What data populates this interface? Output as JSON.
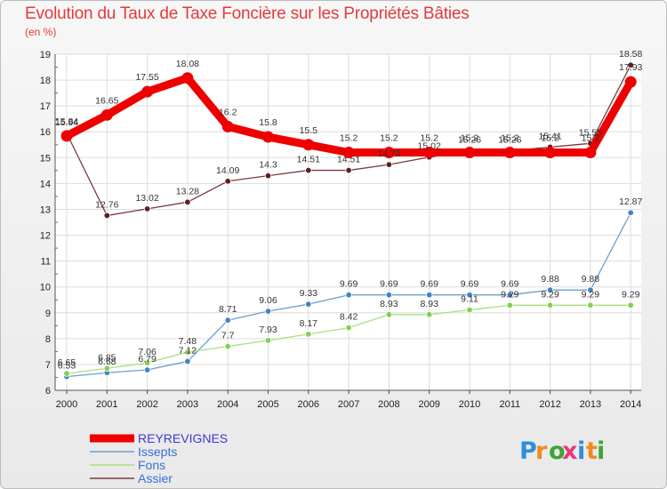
{
  "chart_data": {
    "type": "line",
    "title": "Evolution du Taux de Taxe Foncière sur les Propriétés Bâties",
    "subtitle": "(en %)",
    "xlabel": "",
    "ylabel": "",
    "x": [
      "2000",
      "2001",
      "2002",
      "2003",
      "2004",
      "2005",
      "2006",
      "2007",
      "2008",
      "2009",
      "2010",
      "2011",
      "2012",
      "2013",
      "2014"
    ],
    "ylim": [
      6,
      19
    ],
    "yticks": [
      6,
      7,
      8,
      9,
      10,
      11,
      12,
      13,
      14,
      15,
      16,
      17,
      18,
      19
    ],
    "grid": true,
    "legend_position": "bottom-left",
    "series": [
      {
        "name": "REYREVIGNES",
        "color": "#ee0000",
        "values": [
          15.84,
          16.65,
          17.55,
          18.08,
          16.2,
          15.8,
          15.5,
          15.2,
          15.2,
          15.2,
          15.2,
          15.2,
          15.2,
          15.2,
          17.93
        ],
        "labels": [
          "15.84",
          "16.65",
          "17.55",
          "18.08",
          "16.2",
          "15.8",
          "15.5",
          "15.2",
          "15.2",
          "15.2",
          "15.2",
          "15.2",
          "15.2",
          "15.2",
          "17.93"
        ]
      },
      {
        "name": "Issepts",
        "color": "#6aa0cc",
        "marker": "#3f86c6",
        "values": [
          6.53,
          6.68,
          6.79,
          7.12,
          8.71,
          9.06,
          9.33,
          9.69,
          9.69,
          9.69,
          9.69,
          9.69,
          9.88,
          9.88,
          12.87
        ],
        "labels": [
          "6.53",
          "6.68",
          "6.79",
          "7.12",
          "8.71",
          "9.06",
          "9.33",
          "9.69",
          "9.69",
          "9.69",
          "9.69",
          "9.69",
          "9.88",
          "9.88",
          "12.87"
        ]
      },
      {
        "name": "Fons",
        "color": "#a9df7f",
        "marker": "#86cf4e",
        "values": [
          6.65,
          6.85,
          7.06,
          7.48,
          7.7,
          7.93,
          8.17,
          8.42,
          8.93,
          8.93,
          9.11,
          9.29,
          9.29,
          9.29,
          9.29
        ],
        "labels": [
          "6.65",
          "6.85",
          "7.06",
          "7.48",
          "7.7",
          "7.93",
          "8.17",
          "8.42",
          "8.93",
          "8.93",
          "9.11",
          "9.29",
          "9.29",
          "9.29",
          "9.29"
        ]
      },
      {
        "name": "Assier",
        "color": "#7a3b3b",
        "marker": "#5c1f1f",
        "values": [
          15.94,
          12.76,
          13.02,
          13.28,
          14.09,
          14.3,
          14.51,
          14.51,
          14.73,
          15.02,
          15.26,
          15.26,
          15.41,
          15.55,
          18.58
        ],
        "labels": [
          "15.94",
          "12.76",
          "13.02",
          "13.28",
          "14.09",
          "14.3",
          "14.51",
          "14.51",
          "14.73",
          "15.02",
          "15.26",
          "15.26",
          "15.41",
          "15.55",
          "18.58"
        ]
      }
    ]
  },
  "logo": {
    "text": "Proxiti",
    "letters": [
      "P",
      "r",
      "o",
      "x",
      "i",
      "t",
      "i"
    ],
    "colors": [
      "#2f8fd8",
      "#f08a1e",
      "#3aa635",
      "#e83a7a",
      "#2f8fd8",
      "#f08a1e",
      "#3aa635"
    ]
  }
}
